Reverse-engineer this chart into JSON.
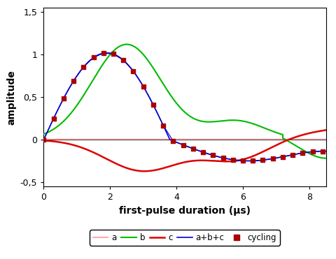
{
  "xlabel": "first-pulse duration (μs)",
  "ylabel": "amplitude",
  "xlim": [
    0,
    8.5
  ],
  "ylim": [
    -0.55,
    1.55
  ],
  "xticks": [
    0,
    2,
    4,
    6,
    8
  ],
  "yticks": [
    -0.5,
    0,
    0.5,
    1.0,
    1.5
  ],
  "ytick_labels": [
    "-0,5",
    "0",
    "0,5",
    "1",
    "1,5"
  ],
  "xtick_labels": [
    "0",
    "2",
    "4",
    "6",
    "8"
  ],
  "color_a": "#ffaaaa",
  "color_b": "#00bb00",
  "color_c": "#dd0000",
  "color_abc": "#0000cc",
  "color_cycling_marker": "#aa0000",
  "background": "#ffffff"
}
